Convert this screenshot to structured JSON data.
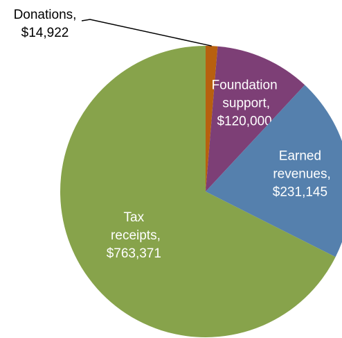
{
  "chart_data": {
    "type": "pie",
    "categories": [
      "Donations,",
      "Foundation support,",
      "Earned revenues,",
      "Tax receipts,"
    ],
    "values": [
      14922,
      120000,
      231145,
      763371
    ],
    "value_labels": [
      "$14,922",
      "$120,000",
      "$231,145",
      "$763,371"
    ],
    "colors": [
      "#b8600f",
      "#7d3f76",
      "#5580ad",
      "#87a34b"
    ]
  }
}
